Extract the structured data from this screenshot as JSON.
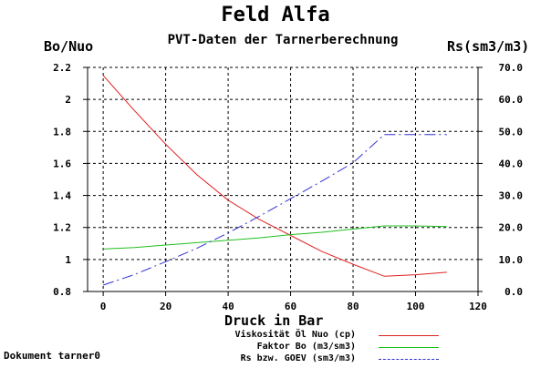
{
  "header": {
    "title": "Feld Alfa",
    "subtitle": "PVT-Daten der Tarnerberechnung"
  },
  "footer": {
    "document_label": "Dokument tarner0"
  },
  "chart_data": {
    "type": "line",
    "title": "Feld Alfa",
    "subtitle": "PVT-Daten der Tarnerberechnung",
    "xlabel": "Druck in Bar",
    "ylabel_left": "Bo/Nuo",
    "ylabel_right": "Rs(sm3/m3)",
    "xlim": [
      -5,
      120
    ],
    "ylim_left": [
      0.8,
      2.2
    ],
    "ylim_right": [
      0,
      70
    ],
    "x_ticks": [
      "0",
      "20",
      "40",
      "60",
      "80",
      "100",
      "120"
    ],
    "y_left_ticks": [
      "0.8",
      "1",
      "1.2",
      "1.4",
      "1.6",
      "1.8",
      "2",
      "2.2"
    ],
    "y_right_ticks": [
      "0.0",
      "10.0",
      "20.0",
      "30.0",
      "40.0",
      "50.0",
      "60.0",
      "70.0"
    ],
    "grid": true,
    "legend_position": "bottom",
    "series": [
      {
        "name": "Viskosität Öl Nuo (cp)",
        "axis": "left",
        "color": "#e02020",
        "dash": "solid",
        "x": [
          0,
          10,
          20,
          30,
          40,
          50,
          60,
          70,
          80,
          90,
          100,
          110
        ],
        "y": [
          2.15,
          1.93,
          1.72,
          1.53,
          1.37,
          1.25,
          1.15,
          1.05,
          0.97,
          0.895,
          0.905,
          0.92
        ]
      },
      {
        "name": "Faktor Bo (m3/sm3)",
        "axis": "left",
        "color": "#20c020",
        "dash": "solid",
        "x": [
          0,
          10,
          20,
          30,
          40,
          50,
          60,
          70,
          80,
          90,
          100,
          110
        ],
        "y": [
          1.065,
          1.075,
          1.09,
          1.105,
          1.12,
          1.135,
          1.155,
          1.17,
          1.19,
          1.21,
          1.21,
          1.205
        ]
      },
      {
        "name": "Rs bzw. GOEV (sm3/m3)",
        "axis": "right",
        "color": "#3030d0",
        "dash": "dashdot",
        "x": [
          0,
          10,
          20,
          30,
          40,
          50,
          60,
          70,
          80,
          90,
          100,
          110
        ],
        "y": [
          2.0,
          5.3,
          9.3,
          13.5,
          18.3,
          23.5,
          29.0,
          34.5,
          40.2,
          49.0,
          49.0,
          49.0
        ]
      }
    ]
  }
}
